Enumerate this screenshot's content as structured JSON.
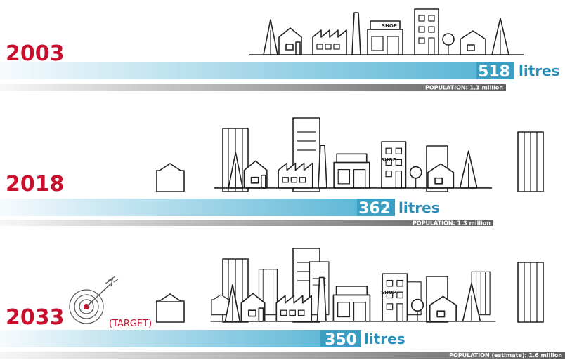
{
  "rows": [
    {
      "year": "2003",
      "value": "518",
      "unit": "litres",
      "population": "POPULATION: 1.1 million"
    },
    {
      "year": "2018",
      "value": "362",
      "unit": "litres",
      "population": "POPULATION: 1.3 million"
    },
    {
      "year": "2033",
      "value": "350",
      "unit": "litres",
      "population": "POPULATION (estimate): 1.6 million"
    }
  ],
  "target": "(TARGET)",
  "shop_sign": "SHOP"
}
